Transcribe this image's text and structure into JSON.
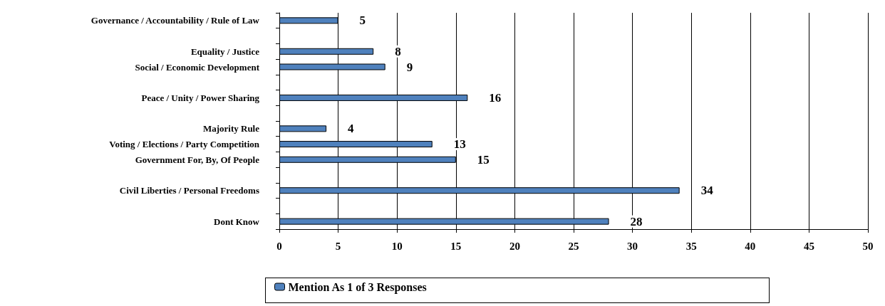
{
  "chart_data": {
    "type": "bar",
    "orientation": "horizontal",
    "categories": [
      "Governance / Accountability / Rule of Law",
      null,
      "Equality / Justice",
      "Social / Economic Development",
      null,
      "Peace / Unity / Power Sharing",
      null,
      "Majority Rule",
      "Voting / Elections / Party Competition",
      "Government For, By, Of People",
      null,
      "Civil Liberties / Personal Freedoms",
      null,
      "Dont Know"
    ],
    "series": [
      {
        "name": "Mention As 1 of 3 Responses",
        "color": "#4f81bd",
        "values": [
          5,
          null,
          8,
          9,
          null,
          16,
          null,
          4,
          13,
          15,
          null,
          34,
          null,
          28
        ]
      }
    ],
    "xlim": [
      0,
      50
    ],
    "xticks": [
      0,
      5,
      10,
      15,
      20,
      25,
      30,
      35,
      40,
      45,
      50
    ],
    "grid": "x",
    "legend": "bottom",
    "data_labels": true
  }
}
